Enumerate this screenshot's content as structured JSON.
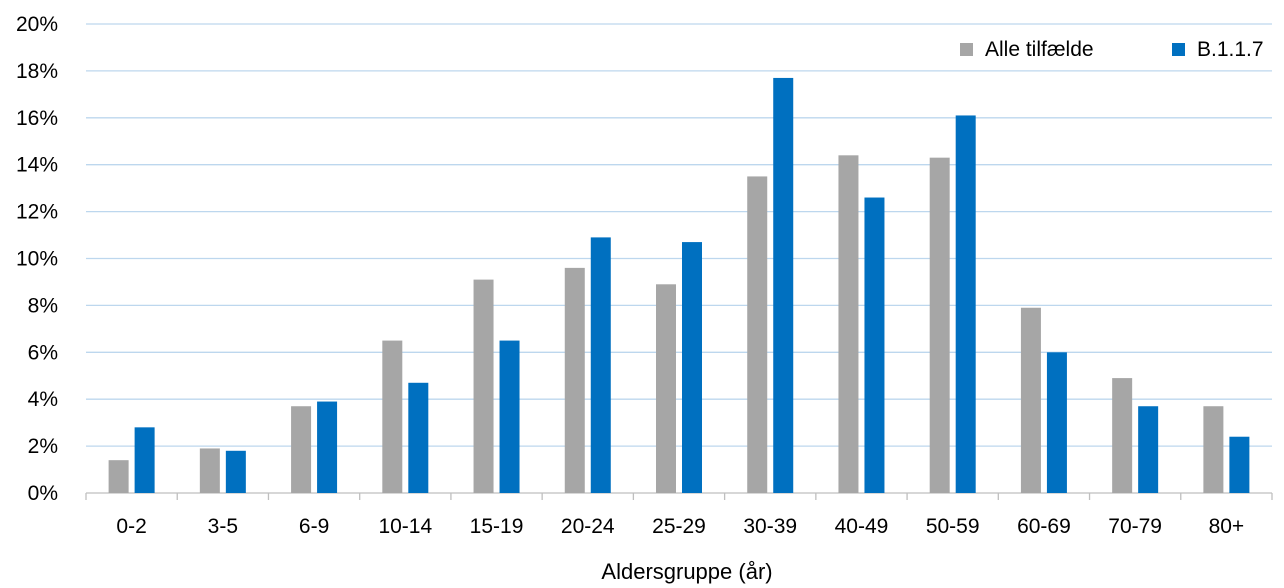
{
  "chart_data": {
    "type": "bar",
    "title": "",
    "xlabel": "Aldersgruppe (år)",
    "ylabel": "",
    "ylim": [
      0,
      20
    ],
    "y_ticks": [
      0,
      2,
      4,
      6,
      8,
      10,
      12,
      14,
      16,
      18,
      20
    ],
    "y_tick_format": "%",
    "grid": true,
    "legend_position": "top-right",
    "categories": [
      "0-2",
      "3-5",
      "6-9",
      "10-14",
      "15-19",
      "20-24",
      "25-29",
      "30-39",
      "40-49",
      "50-59",
      "60-69",
      "70-79",
      "80+"
    ],
    "series": [
      {
        "name": "Alle tilfælde",
        "color": "#a6a6a6",
        "values": [
          1.4,
          1.9,
          3.7,
          6.5,
          9.1,
          9.6,
          8.9,
          13.5,
          14.4,
          14.3,
          7.9,
          4.9,
          3.7
        ]
      },
      {
        "name": "B.1.1.7",
        "color": "#0070c0",
        "values": [
          2.8,
          1.8,
          3.9,
          4.7,
          6.5,
          10.9,
          10.7,
          17.7,
          12.6,
          16.1,
          6.0,
          3.7,
          2.4
        ]
      }
    ]
  }
}
